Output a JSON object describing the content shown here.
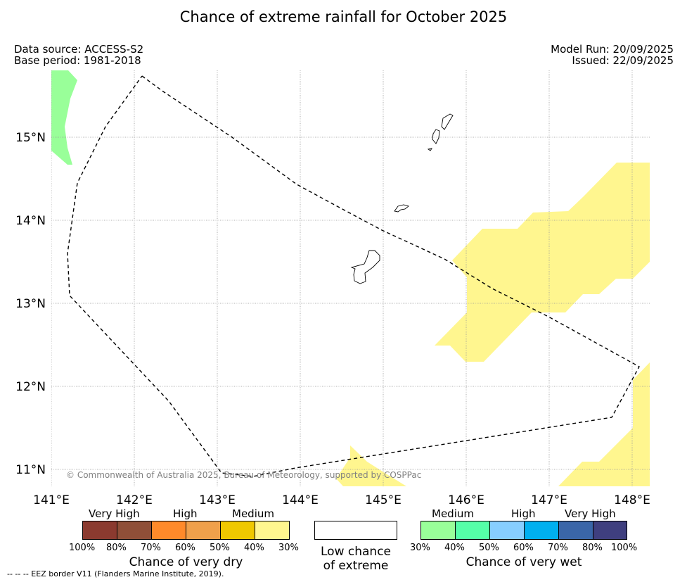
{
  "title": "Chance of extreme rainfall for October 2025",
  "meta": {
    "data_source": "Data source: ACCESS-S2",
    "base_period": "Base period: 1981-2018",
    "model_run": "Model Run: 20/09/2025",
    "issued": "Issued: 22/09/2025"
  },
  "map": {
    "lon_labels": [
      "141°E",
      "142°E",
      "143°E",
      "144°E",
      "145°E",
      "146°E",
      "147°E",
      "148°E"
    ],
    "lat_labels": [
      "15°N",
      "14°N",
      "13°N",
      "12°N",
      "11°N"
    ],
    "copyright": "© Commonwealth of Australia 2025, Bureau of Meteorology, supported by COSPPac",
    "colors": {
      "wet_medium": "#99ff99",
      "dry_medium": "#fff68f",
      "eez": "#000000",
      "grid": "#999999"
    }
  },
  "legend": {
    "dry": {
      "category_labels": [
        "Very High",
        "High",
        "Medium"
      ],
      "tick_labels": [
        "100%",
        "80%",
        "70%",
        "60%",
        "50%",
        "40%",
        "30%"
      ],
      "colors": [
        "#8b3a2f",
        "#8f4f38",
        "#ff8a2a",
        "#f0a04b",
        "#f0c800",
        "#fff68f"
      ],
      "title": "Chance of very dry"
    },
    "low": {
      "line1": "Low chance",
      "line2": "of extreme"
    },
    "wet": {
      "category_labels": [
        "Medium",
        "High",
        "Very High"
      ],
      "tick_labels": [
        "30%",
        "40%",
        "50%",
        "60%",
        "70%",
        "80%",
        "100%"
      ],
      "colors": [
        "#99ff99",
        "#55ffa8",
        "#87ceff",
        "#00b0f0",
        "#3a66a8",
        "#3f3f7f"
      ],
      "title": "Chance of very wet"
    }
  },
  "footer": "--  --  -- EEZ border V11 (Flanders Marine Institute, 2019)."
}
